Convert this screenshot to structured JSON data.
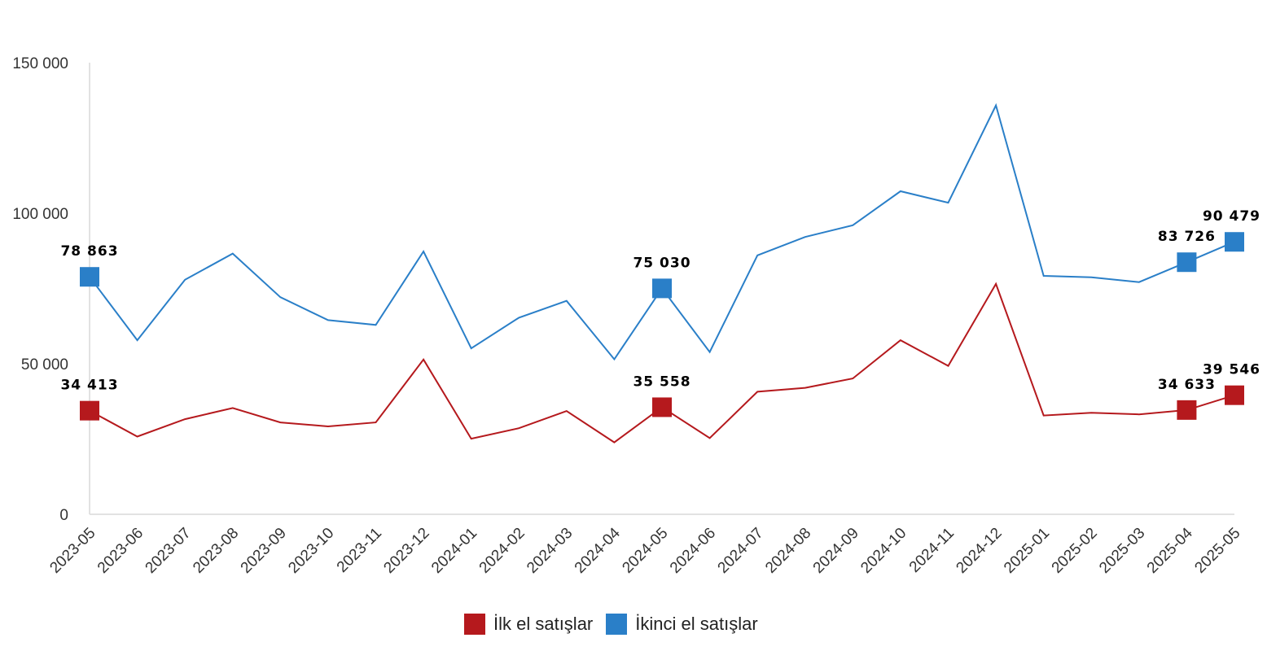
{
  "chart_data": {
    "type": "line",
    "categories": [
      "2023-05",
      "2023-06",
      "2023-07",
      "2023-08",
      "2023-09",
      "2023-10",
      "2023-11",
      "2023-12",
      "2024-01",
      "2024-02",
      "2024-03",
      "2024-04",
      "2024-05",
      "2024-06",
      "2024-07",
      "2024-08",
      "2024-09",
      "2024-10",
      "2024-11",
      "2024-12",
      "2025-01",
      "2025-02",
      "2025-03",
      "2025-04",
      "2025-05"
    ],
    "series": [
      {
        "name": "İlk el satışlar",
        "color": "#b5191d",
        "values": [
          34413,
          25800,
          31600,
          35300,
          30500,
          29200,
          30500,
          51400,
          25100,
          28600,
          34300,
          23900,
          35558,
          25300,
          40700,
          42000,
          45100,
          57800,
          49300,
          76500,
          32800,
          33700,
          33200,
          34633,
          39546
        ],
        "labeled_points": [
          {
            "index": 0,
            "label": "34 413"
          },
          {
            "index": 12,
            "label": "35 558"
          },
          {
            "index": 23,
            "label": "34 633"
          },
          {
            "index": 24,
            "label": "39 546"
          }
        ]
      },
      {
        "name": "İkinci el satışlar",
        "color": "#2a7fc8",
        "values": [
          78863,
          57800,
          77900,
          86600,
          72100,
          64500,
          62900,
          87300,
          55100,
          65300,
          70900,
          51500,
          75030,
          53900,
          86000,
          92100,
          96000,
          107300,
          103500,
          135800,
          79200,
          78700,
          77100,
          83726,
          90479
        ],
        "labeled_points": [
          {
            "index": 0,
            "label": "78 863"
          },
          {
            "index": 12,
            "label": "75 030"
          },
          {
            "index": 23,
            "label": "83 726"
          },
          {
            "index": 24,
            "label": "90 479"
          }
        ]
      }
    ],
    "yticks": [
      {
        "value": 0,
        "label": "0"
      },
      {
        "value": 50000,
        "label": "50 000"
      },
      {
        "value": 100000,
        "label": "100 000"
      },
      {
        "value": 150000,
        "label": "150 000"
      }
    ],
    "ylim": [
      0,
      150000
    ],
    "grid": false,
    "legend_position": "bottom"
  },
  "legend": {
    "items": [
      {
        "label": "İlk el satışlar",
        "color": "#b5191d"
      },
      {
        "label": "İkinci el satışlar",
        "color": "#2a7fc8"
      }
    ]
  }
}
